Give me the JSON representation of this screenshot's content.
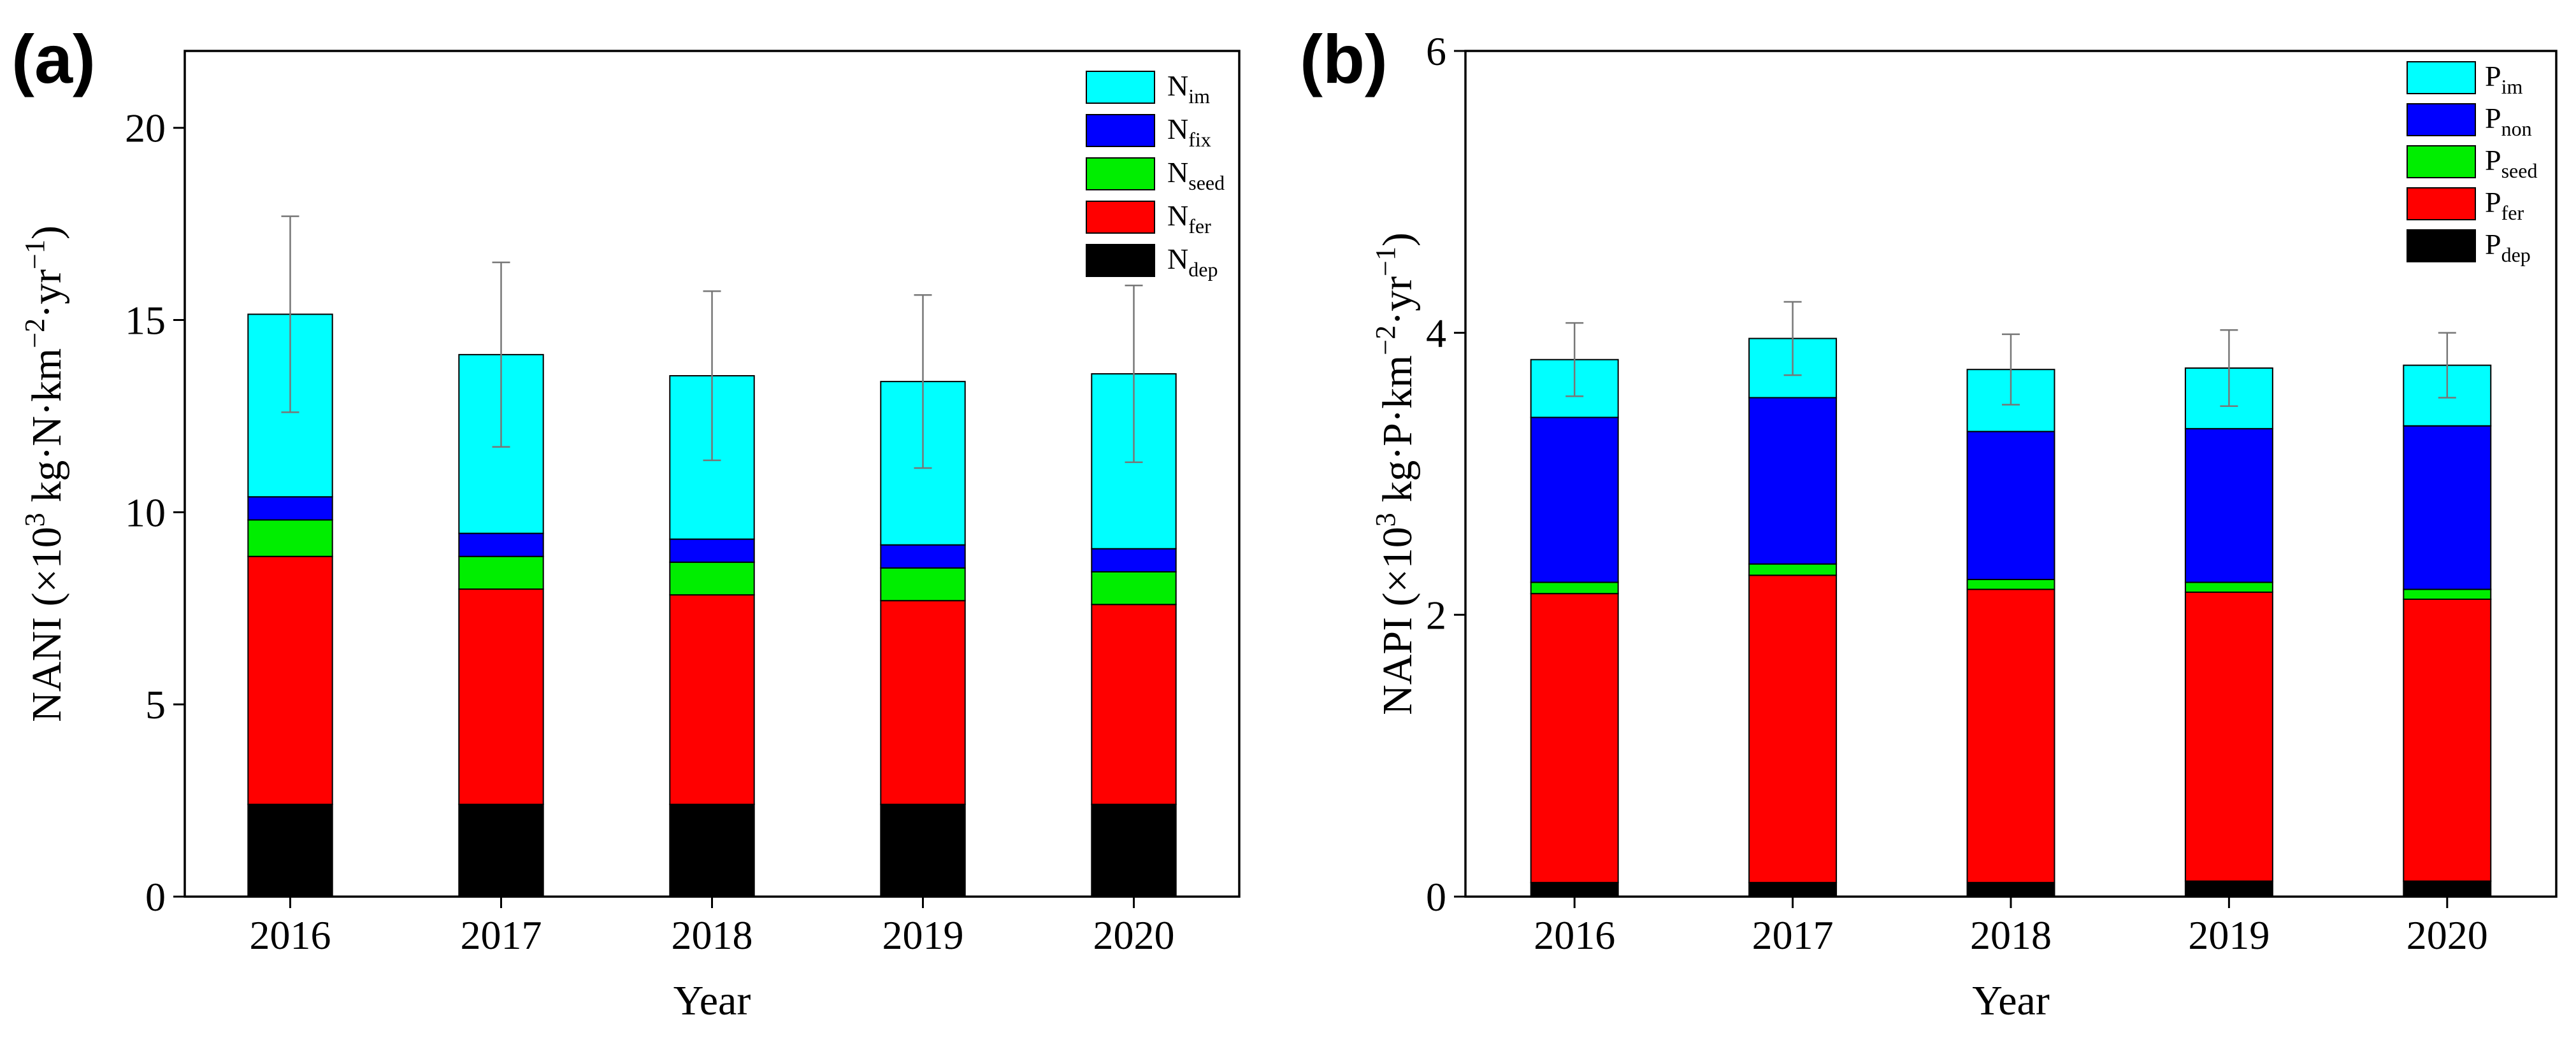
{
  "chart_data": [
    {
      "type": "bar",
      "stacked": true,
      "panel_label": "(a)",
      "categories": [
        "2016",
        "2017",
        "2018",
        "2019",
        "2020"
      ],
      "xlabel": "Year",
      "ylabel": "NANI (×10³ kg·N·km⁻²·yr⁻¹)",
      "ylabel_parts": [
        {
          "t": "NANI (×10",
          "sup": false
        },
        {
          "t": "3",
          "sup": true
        },
        {
          "t": " kg·N·km",
          "sup": false
        },
        {
          "t": "−2",
          "sup": true
        },
        {
          "t": "·yr",
          "sup": false
        },
        {
          "t": "−1",
          "sup": true
        },
        {
          "t": ")",
          "sup": false
        }
      ],
      "ylim": [
        0,
        22
      ],
      "yticks": [
        0,
        5,
        10,
        15,
        20
      ],
      "ytick_labels": [
        "0",
        "5",
        "10",
        "15",
        "20"
      ],
      "series": [
        {
          "name": "N_dep",
          "label_base": "N",
          "label_sub": "dep",
          "color": "#000000",
          "values": [
            2.4,
            2.4,
            2.4,
            2.4,
            2.4
          ]
        },
        {
          "name": "N_fer",
          "label_base": "N",
          "label_sub": "fer",
          "color": "#ff0000",
          "values": [
            6.45,
            5.6,
            5.45,
            5.3,
            5.2
          ]
        },
        {
          "name": "N_seed",
          "label_base": "N",
          "label_sub": "seed",
          "color": "#00ee00",
          "values": [
            0.95,
            0.85,
            0.85,
            0.85,
            0.85
          ]
        },
        {
          "name": "N_fix",
          "label_base": "N",
          "label_sub": "fix",
          "color": "#0000ff",
          "values": [
            0.6,
            0.6,
            0.6,
            0.6,
            0.6
          ]
        },
        {
          "name": "N_im",
          "label_base": "N",
          "label_sub": "im",
          "color": "#00ffff",
          "values": [
            4.75,
            4.65,
            4.25,
            4.25,
            4.55
          ]
        }
      ],
      "totals": [
        15.15,
        14.1,
        13.55,
        13.4,
        13.6
      ],
      "error_bars": [
        2.55,
        2.4,
        2.2,
        2.25,
        2.3
      ],
      "legend_order": [
        "N_im",
        "N_fix",
        "N_seed",
        "N_fer",
        "N_dep"
      ],
      "legend_position": "top-right"
    },
    {
      "type": "bar",
      "stacked": true,
      "panel_label": "(b)",
      "categories": [
        "2016",
        "2017",
        "2018",
        "2019",
        "2020"
      ],
      "xlabel": "Year",
      "ylabel": "NAPI (×10³ kg·P·km⁻²·yr⁻¹)",
      "ylabel_parts": [
        {
          "t": "NAPI (×10",
          "sup": false
        },
        {
          "t": "3",
          "sup": true
        },
        {
          "t": " kg·P·km",
          "sup": false
        },
        {
          "t": "−2",
          "sup": true
        },
        {
          "t": "·yr",
          "sup": false
        },
        {
          "t": "−1",
          "sup": true
        },
        {
          "t": ")",
          "sup": false
        }
      ],
      "ylim": [
        0,
        6
      ],
      "yticks": [
        0,
        2,
        4,
        6
      ],
      "ytick_labels": [
        "0",
        "2",
        "4",
        "6"
      ],
      "series": [
        {
          "name": "P_dep",
          "label_base": "P",
          "label_sub": "dep",
          "color": "#000000",
          "values": [
            0.1,
            0.1,
            0.1,
            0.11,
            0.11
          ]
        },
        {
          "name": "P_fer",
          "label_base": "P",
          "label_sub": "fer",
          "color": "#ff0000",
          "values": [
            2.05,
            2.18,
            2.08,
            2.05,
            2.0
          ]
        },
        {
          "name": "P_seed",
          "label_base": "P",
          "label_sub": "seed",
          "color": "#00ee00",
          "values": [
            0.08,
            0.08,
            0.07,
            0.07,
            0.07
          ]
        },
        {
          "name": "P_non",
          "label_base": "P",
          "label_sub": "non",
          "color": "#0000ff",
          "values": [
            1.17,
            1.18,
            1.05,
            1.09,
            1.16
          ]
        },
        {
          "name": "P_im",
          "label_base": "P",
          "label_sub": "im",
          "color": "#00ffff",
          "values": [
            0.41,
            0.42,
            0.44,
            0.43,
            0.43
          ]
        }
      ],
      "totals": [
        3.81,
        3.96,
        3.74,
        3.75,
        3.77
      ],
      "error_bars": [
        0.26,
        0.26,
        0.25,
        0.27,
        0.23
      ],
      "legend_order": [
        "P_im",
        "P_non",
        "P_seed",
        "P_fer",
        "P_dep"
      ],
      "legend_position": "top-right"
    }
  ]
}
